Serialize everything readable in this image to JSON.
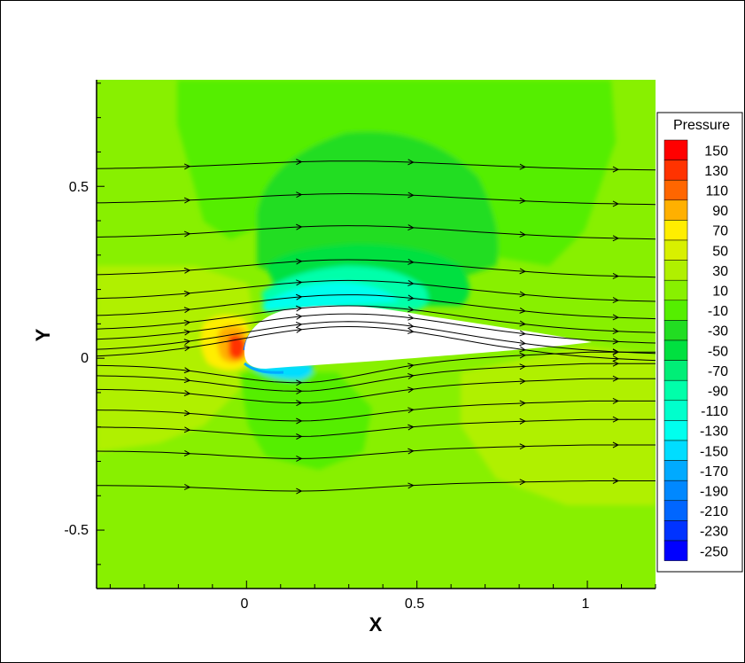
{
  "chart_data": {
    "type": "contour",
    "xlabel": "X",
    "ylabel": "Y",
    "xlim": [
      -0.44,
      1.2
    ],
    "ylim": [
      -0.67,
      0.81
    ],
    "x_ticks": [
      0,
      0.5,
      1
    ],
    "x_tick_labels": [
      "0",
      "0.5",
      "1"
    ],
    "y_ticks": [
      0.5,
      0,
      -0.5
    ],
    "y_tick_labels": [
      "0.5",
      "0",
      "-0.5"
    ],
    "legend": {
      "title": "Pressure",
      "placement": "right",
      "levels": [
        {
          "label": "150",
          "color": "#ff0000"
        },
        {
          "label": "130",
          "color": "#ff3300"
        },
        {
          "label": "110",
          "color": "#ff6600"
        },
        {
          "label": "90",
          "color": "#ffb000"
        },
        {
          "label": "70",
          "color": "#ffee00"
        },
        {
          "label": "50",
          "color": "#d8f000"
        },
        {
          "label": "30",
          "color": "#b0f000"
        },
        {
          "label": "10",
          "color": "#88f000"
        },
        {
          "label": "-10",
          "color": "#55ee00"
        },
        {
          "label": "-30",
          "color": "#22dd22"
        },
        {
          "label": "-50",
          "color": "#00e040"
        },
        {
          "label": "-70",
          "color": "#00ee77"
        },
        {
          "label": "-90",
          "color": "#00ffaa"
        },
        {
          "label": "-110",
          "color": "#00ffcc"
        },
        {
          "label": "-130",
          "color": "#00ffee"
        },
        {
          "label": "-150",
          "color": "#00ddff"
        },
        {
          "label": "-170",
          "color": "#00aaff"
        },
        {
          "label": "-190",
          "color": "#0088ff"
        },
        {
          "label": "-210",
          "color": "#0066ff"
        },
        {
          "label": "-230",
          "color": "#0033ff"
        },
        {
          "label": "-250",
          "color": "#0000ff"
        }
      ]
    },
    "streamline_y_far_left": [
      0.55,
      0.45,
      0.35,
      0.24,
      0.17,
      0.12,
      0.08,
      0.05,
      0.02,
      0.0,
      -0.02,
      -0.05,
      -0.09,
      -0.15,
      -0.2,
      -0.27,
      -0.37
    ],
    "airfoil": "cambered airfoil, leading edge at x=0, trailing edge near x=1"
  }
}
